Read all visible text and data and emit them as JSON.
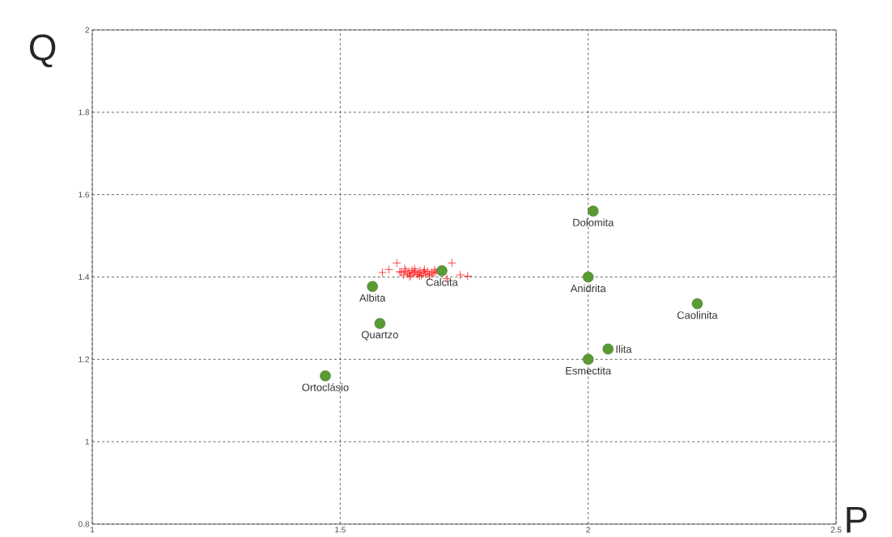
{
  "chart_data": {
    "type": "scatter",
    "xlabel": "P",
    "ylabel": "Q",
    "xlim": [
      1,
      2.5
    ],
    "ylim": [
      0.8,
      2
    ],
    "xticks": [
      1,
      1.5,
      2,
      2.5
    ],
    "yticks": [
      0.8,
      1,
      1.2,
      1.4,
      1.6,
      1.8,
      2
    ],
    "grid": true,
    "series": [
      {
        "color": "#ff0000",
        "marker": "cross",
        "x": [
          1.585,
          1.598,
          1.614,
          1.623,
          1.628,
          1.632,
          1.636,
          1.639,
          1.642,
          1.645,
          1.648,
          1.651,
          1.655,
          1.658,
          1.661,
          1.664,
          1.668,
          1.672,
          1.676,
          1.68,
          1.685,
          1.689,
          1.693,
          1.7,
          1.71,
          1.725,
          1.742,
          1.757,
          1.63,
          1.65,
          1.67,
          1.69,
          1.64,
          1.66,
          1.68,
          1.62,
          1.7,
          1.715
        ],
        "values": [
          1.411,
          1.418,
          1.434,
          1.411,
          1.405,
          1.415,
          1.408,
          1.412,
          1.404,
          1.416,
          1.409,
          1.413,
          1.406,
          1.41,
          1.415,
          1.404,
          1.412,
          1.408,
          1.414,
          1.406,
          1.411,
          1.409,
          1.413,
          null,
          null,
          1.434,
          1.405,
          1.402,
          1.42,
          1.42,
          1.418,
          1.417,
          1.401,
          1.402,
          1.403,
          1.413,
          null,
          1.396
        ]
      },
      {
        "color": "#5a9a32",
        "marker": "circle",
        "x": [
          2.01,
          2.0,
          2.22,
          2.04,
          2.0,
          1.705,
          1.565,
          1.58,
          1.47
        ],
        "values": [
          1.56,
          1.4,
          1.335,
          1.225,
          1.2,
          1.415,
          1.377,
          1.287,
          1.16
        ]
      }
    ],
    "annotations": [
      {
        "text": "Dolomita",
        "x": 2.01,
        "y": 1.56
      },
      {
        "text": "Anidrita",
        "x": 2.0,
        "y": 1.4
      },
      {
        "text": "Caolinita",
        "x": 2.22,
        "y": 1.335
      },
      {
        "text": "Ilita",
        "x": 2.04,
        "y": 1.225
      },
      {
        "text": "Esmectita",
        "x": 2.0,
        "y": 1.2
      },
      {
        "text": "Calcita",
        "x": 1.705,
        "y": 1.415
      },
      {
        "text": "Albita",
        "x": 1.565,
        "y": 1.377
      },
      {
        "text": "Quartzo",
        "x": 1.58,
        "y": 1.287
      },
      {
        "text": "Ortoclásio",
        "x": 1.47,
        "y": 1.16
      }
    ]
  }
}
